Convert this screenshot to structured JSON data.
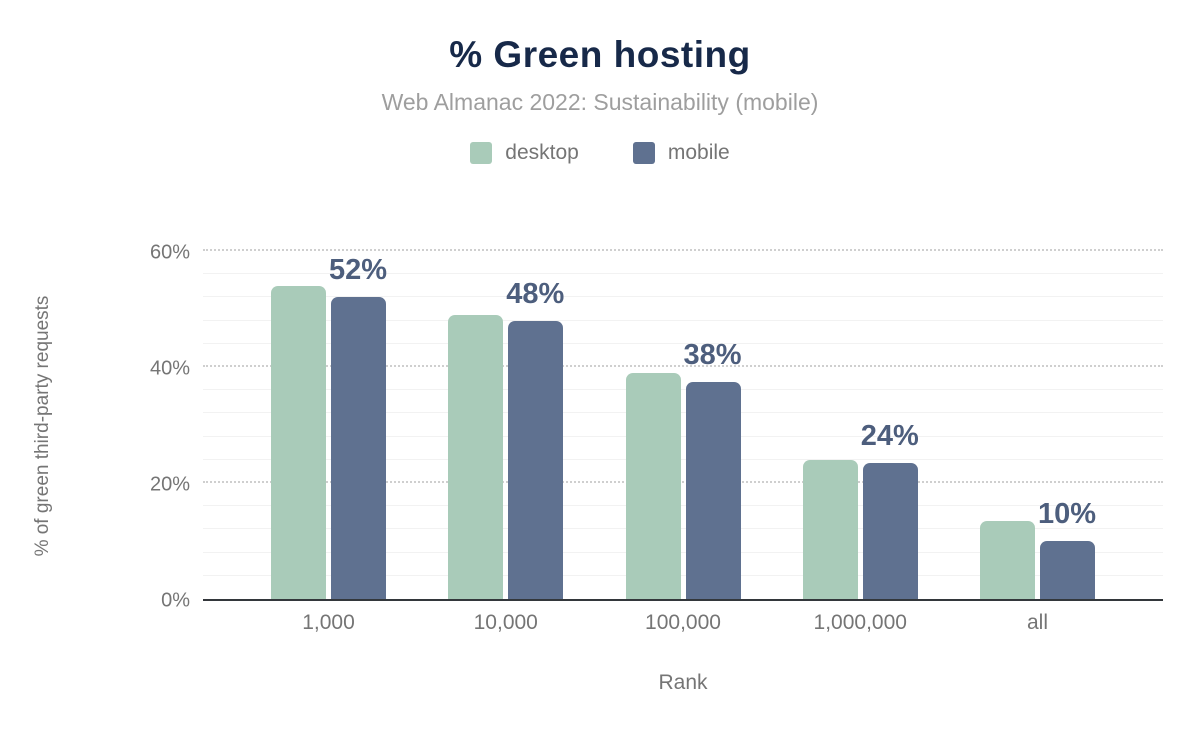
{
  "header": {
    "title": "% Green hosting",
    "subtitle": "Web Almanac 2022: Sustainability (mobile)"
  },
  "colors": {
    "title_text": "#172949",
    "subtitle_text": "#9e9e9e",
    "axis_text": "#757575",
    "data_label_text": "#4d5e7d",
    "axis_line": "#33373b",
    "major_gridline": "#cfcfcf",
    "minor_gridline": "#f2f2f2",
    "desktop": "#a9cbb9",
    "mobile": "#5f7190"
  },
  "chart_data": {
    "type": "bar",
    "title": "% Green hosting",
    "subtitle": "Web Almanac 2022: Sustainability (mobile)",
    "xlabel": "Rank",
    "ylabel": "% of green third-party requests",
    "categories": [
      "1,000",
      "10,000",
      "100,000",
      "1,000,000",
      "all"
    ],
    "series": [
      {
        "name": "desktop",
        "color": "#a9cbb9",
        "values": [
          54,
          49,
          39,
          24,
          13.5
        ]
      },
      {
        "name": "mobile",
        "color": "#5f7190",
        "values": [
          52,
          48,
          37.5,
          23.5,
          10
        ]
      }
    ],
    "bar_labels": {
      "labeled_series": "mobile",
      "texts": [
        "52%",
        "48%",
        "38%",
        "24%",
        "10%"
      ]
    },
    "ylim": [
      0,
      60
    ],
    "yticks": [
      0,
      20,
      40,
      60
    ],
    "ytick_labels": [
      "0%",
      "20%",
      "40%",
      "60%"
    ],
    "minor_grid_step": 4,
    "grid": "on",
    "legend_position": "top"
  }
}
